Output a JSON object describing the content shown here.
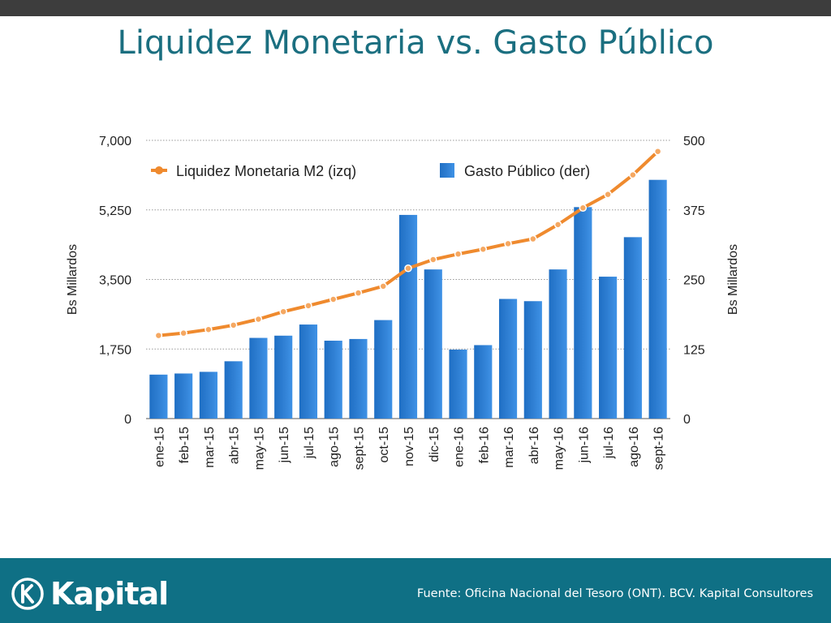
{
  "header": {
    "title": "Liquidez Monetaria vs. Gasto Público"
  },
  "footer": {
    "logo_text": "Kapital",
    "source": "Fuente: Oficina Nacional del Tesoro (ONT). BCV. Kapital Consultores"
  },
  "colors": {
    "bar": "#2f7fd3",
    "line": "#ef8a2e",
    "title": "#1b6f80",
    "footer_bg": "#0f7085"
  },
  "chart_data": {
    "type": "bar",
    "categories": [
      "ene-15",
      "feb-15",
      "mar-15",
      "abr-15",
      "may-15",
      "jun-15",
      "jul-15",
      "ago-15",
      "sept-15",
      "oct-15",
      "nov-15",
      "dic-15",
      "ene-16",
      "feb-16",
      "mar-16",
      "abr-16",
      "may-16",
      "jun-16",
      "jul-16",
      "ago-16",
      "sept-16"
    ],
    "series": [
      {
        "name": "Liquidez Monetaria M2 (izq)",
        "kind": "line",
        "axis": "left",
        "values": [
          2090,
          2150,
          2240,
          2350,
          2500,
          2690,
          2840,
          3000,
          3160,
          3330,
          3780,
          4000,
          4140,
          4260,
          4400,
          4520,
          4880,
          5300,
          5640,
          6130,
          6720
        ]
      },
      {
        "name": "Gasto Público (der)",
        "kind": "bar",
        "axis": "right",
        "values": [
          79,
          81,
          84,
          103,
          145,
          149,
          169,
          140,
          143,
          177,
          366,
          268,
          124,
          132,
          215,
          211,
          268,
          380,
          255,
          326,
          429
        ]
      }
    ],
    "ylabel": "Bs Millardos",
    "ylabel_right": "Bs Millardos",
    "ylim": [
      0,
      7000
    ],
    "ylim_right": [
      0,
      500
    ],
    "yticks": [
      "0",
      "1,750",
      "3,500",
      "5,250",
      "7,000"
    ],
    "yticks_right": [
      "0",
      "125",
      "250",
      "375",
      "500"
    ],
    "grid": true,
    "legend_position": "top"
  }
}
